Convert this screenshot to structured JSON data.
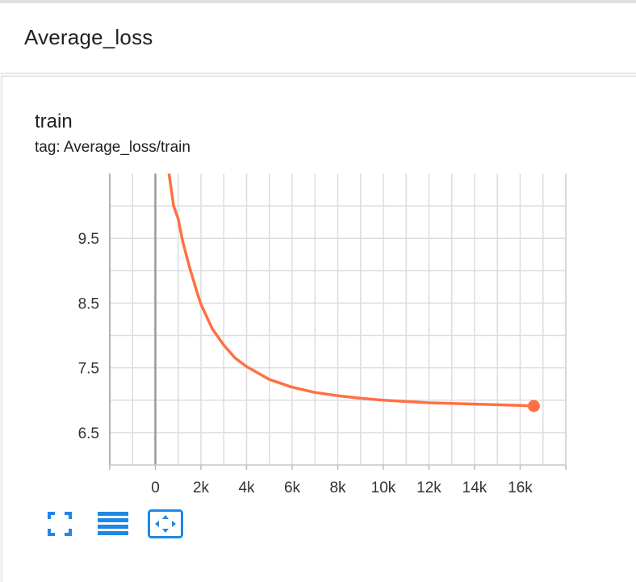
{
  "group": {
    "title": "Average_loss"
  },
  "card": {
    "title": "train",
    "tag": "tag: Average_loss/train"
  },
  "colors": {
    "series": "#ff7043",
    "accent": "#1e88e5",
    "grid": "#dddddd",
    "axis": "#999999"
  },
  "toolbar": {
    "items": [
      {
        "name": "fullscreen-icon"
      },
      {
        "name": "menu-icon"
      },
      {
        "name": "fit-domain-icon"
      }
    ]
  },
  "chart_data": {
    "type": "line",
    "grid": true,
    "xlim": [
      -2000,
      18000
    ],
    "ylim": [
      6.0,
      10.5
    ],
    "x_ticks": [
      0,
      2000,
      4000,
      6000,
      8000,
      10000,
      12000,
      14000,
      16000
    ],
    "x_tick_labels": [
      "0",
      "2k",
      "4k",
      "6k",
      "8k",
      "10k",
      "12k",
      "14k",
      "16k"
    ],
    "y_ticks": [
      6.5,
      7.5,
      8.5,
      9.5
    ],
    "y_tick_labels": [
      "6.5",
      "7.5",
      "8.5",
      "9.5"
    ],
    "series": [
      {
        "x": [
          600,
          800,
          1000,
          1200,
          1500,
          1800,
          2000,
          2500,
          3000,
          3500,
          4000,
          5000,
          6000,
          7000,
          8000,
          9000,
          10000,
          11000,
          12000,
          13000,
          14000,
          15000,
          16000,
          16600
        ],
        "y": [
          10.5,
          10.0,
          9.8,
          9.45,
          9.05,
          8.7,
          8.48,
          8.1,
          7.85,
          7.65,
          7.52,
          7.32,
          7.2,
          7.12,
          7.07,
          7.03,
          7.0,
          6.98,
          6.96,
          6.95,
          6.94,
          6.93,
          6.92,
          6.91
        ],
        "last_point": {
          "x": 16600,
          "y": 6.91
        }
      }
    ]
  }
}
